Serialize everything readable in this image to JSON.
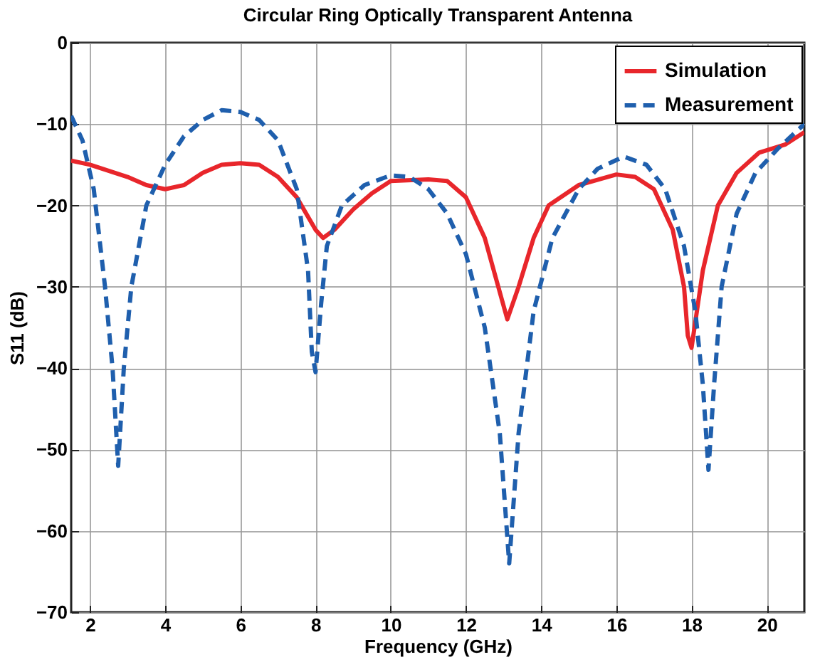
{
  "chart_data": {
    "type": "line",
    "title": "Circular Ring Optically Transparent Antenna",
    "xlabel": "Frequency (GHz)",
    "ylabel": "S11 (dB)",
    "xlim": [
      1.5,
      21
    ],
    "xticks": [
      2,
      4,
      6,
      8,
      10,
      12,
      14,
      16,
      18,
      20
    ],
    "ylim": [
      -70,
      0
    ],
    "yticks": [
      -70,
      -60,
      -50,
      -40,
      -30,
      -20,
      -10,
      0
    ],
    "grid": true,
    "legend": "top right",
    "series": [
      {
        "name": "Simulation",
        "color": "#e8262b",
        "line_style": "solid",
        "x": [
          1.5,
          2,
          3,
          3.5,
          4,
          4.5,
          5,
          5.5,
          6,
          6.5,
          7,
          7.5,
          8,
          8.2,
          8.5,
          9,
          9.5,
          10,
          11,
          11.5,
          12,
          12.5,
          12.8,
          13.1,
          13.4,
          13.8,
          14.2,
          15,
          16,
          16.5,
          17,
          17.5,
          17.8,
          17.9,
          18,
          18.3,
          18.7,
          19.2,
          19.8,
          20.5,
          21
        ],
        "values": [
          -14.5,
          -15,
          -16.5,
          -17.5,
          -18,
          -17.5,
          -16,
          -15,
          -14.8,
          -15,
          -16.5,
          -19,
          -23,
          -24,
          -23,
          -20.5,
          -18.5,
          -17,
          -16.8,
          -17,
          -19,
          -24,
          -29,
          -34,
          -30,
          -24,
          -20,
          -17.5,
          -16.2,
          -16.5,
          -18,
          -23,
          -30,
          -36,
          -37.5,
          -28,
          -20,
          -16,
          -13.5,
          -12.5,
          -11
        ]
      },
      {
        "name": "Measurement",
        "color": "#1f5fad",
        "line_style": "dashed",
        "x": [
          1.5,
          1.8,
          2.1,
          2.4,
          2.6,
          2.75,
          2.9,
          3.1,
          3.5,
          4,
          4.5,
          5,
          5.5,
          6,
          6.5,
          7,
          7.5,
          7.8,
          7.9,
          8,
          8.15,
          8.3,
          8.7,
          9.3,
          10,
          10.5,
          11,
          11.5,
          12,
          12.5,
          12.9,
          13.15,
          13.4,
          13.8,
          14.3,
          15,
          15.5,
          16.2,
          16.8,
          17.3,
          17.8,
          18.1,
          18.3,
          18.45,
          18.6,
          18.8,
          19.2,
          19.7,
          20.3,
          21
        ],
        "values": [
          -9,
          -12,
          -18,
          -30,
          -40,
          -52,
          -40,
          -30,
          -20,
          -15,
          -11.5,
          -9.5,
          -8.3,
          -8.5,
          -9.5,
          -12,
          -18,
          -28,
          -38,
          -40.5,
          -32,
          -25,
          -20,
          -17.5,
          -16.3,
          -16.5,
          -18,
          -21,
          -26,
          -35,
          -48,
          -64,
          -48,
          -33,
          -24,
          -18,
          -15.5,
          -14,
          -15,
          -18,
          -25,
          -33,
          -42,
          -52.5,
          -42,
          -30,
          -21,
          -16,
          -13,
          -10
        ]
      }
    ]
  }
}
